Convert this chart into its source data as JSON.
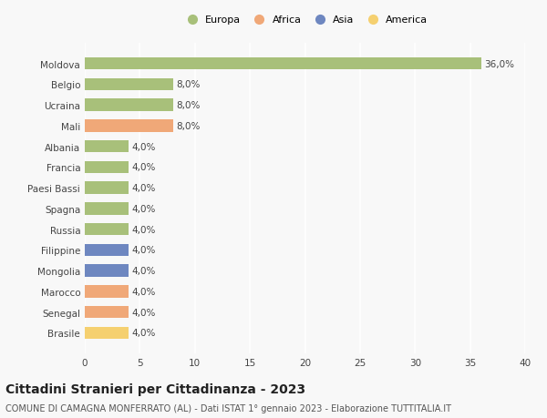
{
  "countries": [
    "Moldova",
    "Belgio",
    "Ucraina",
    "Mali",
    "Albania",
    "Francia",
    "Paesi Bassi",
    "Spagna",
    "Russia",
    "Filippine",
    "Mongolia",
    "Marocco",
    "Senegal",
    "Brasile"
  ],
  "values": [
    36.0,
    8.0,
    8.0,
    8.0,
    4.0,
    4.0,
    4.0,
    4.0,
    4.0,
    4.0,
    4.0,
    4.0,
    4.0,
    4.0
  ],
  "labels": [
    "36,0%",
    "8,0%",
    "8,0%",
    "8,0%",
    "4,0%",
    "4,0%",
    "4,0%",
    "4,0%",
    "4,0%",
    "4,0%",
    "4,0%",
    "4,0%",
    "4,0%",
    "4,0%"
  ],
  "colors": [
    "#a8c07a",
    "#a8c07a",
    "#a8c07a",
    "#f0a878",
    "#a8c07a",
    "#a8c07a",
    "#a8c07a",
    "#a8c07a",
    "#a8c07a",
    "#6e87c0",
    "#6e87c0",
    "#f0a878",
    "#f0a878",
    "#f5d070"
  ],
  "legend_labels": [
    "Europa",
    "Africa",
    "Asia",
    "America"
  ],
  "legend_colors": [
    "#a8c07a",
    "#f0a878",
    "#6e87c0",
    "#f5d070"
  ],
  "title": "Cittadini Stranieri per Cittadinanza - 2023",
  "subtitle": "COMUNE DI CAMAGNA MONFERRATO (AL) - Dati ISTAT 1° gennaio 2023 - Elaborazione TUTTITALIA.IT",
  "xlim": [
    0,
    40
  ],
  "xticks": [
    0,
    5,
    10,
    15,
    20,
    25,
    30,
    35,
    40
  ],
  "background_color": "#f8f8f8",
  "grid_color": "#ffffff",
  "title_fontsize": 10,
  "subtitle_fontsize": 7,
  "label_fontsize": 7.5,
  "tick_fontsize": 7.5,
  "legend_fontsize": 8
}
